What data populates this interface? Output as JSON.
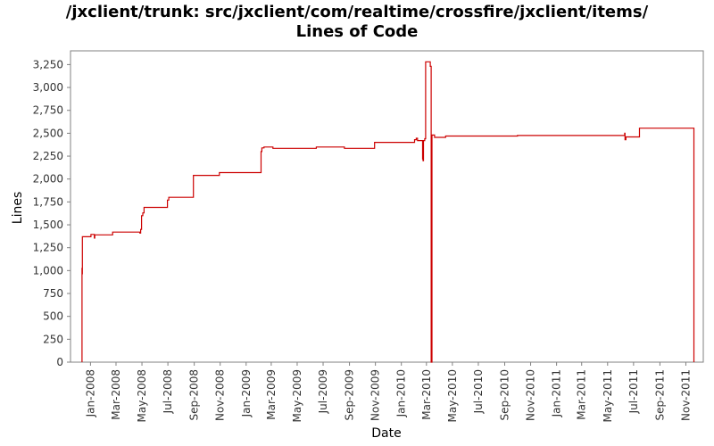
{
  "chart_data": {
    "type": "line",
    "title": "/jxclient/trunk: src/jxclient/com/realtime/crossfire/jxclient/items/",
    "subtitle": "Lines of Code",
    "xlabel": "Date",
    "ylabel": "Lines",
    "ylim": [
      0,
      3400
    ],
    "xlim": [
      "2007-11-15",
      "2011-12-12"
    ],
    "grid": false,
    "legend": "none",
    "series_color": "#cc0000",
    "y_ticks": [
      0,
      250,
      500,
      750,
      1000,
      1250,
      1500,
      1750,
      2000,
      2250,
      2500,
      2750,
      3000,
      3250
    ],
    "y_tick_labels": [
      "0",
      "250",
      "500",
      "750",
      "1,000",
      "1,250",
      "1,500",
      "1,750",
      "2,000",
      "2,250",
      "2,500",
      "2,750",
      "3,000",
      "3,250"
    ],
    "x_ticks": [
      "2008-01-01",
      "2008-03-01",
      "2008-05-01",
      "2008-07-01",
      "2008-09-01",
      "2008-11-01",
      "2009-01-01",
      "2009-03-01",
      "2009-05-01",
      "2009-07-01",
      "2009-09-01",
      "2009-11-01",
      "2010-01-01",
      "2010-03-01",
      "2010-05-01",
      "2010-07-01",
      "2010-09-01",
      "2010-11-01",
      "2011-01-01",
      "2011-03-01",
      "2011-05-01",
      "2011-07-01",
      "2011-09-01",
      "2011-11-01"
    ],
    "x_tick_labels": [
      "Jan-2008",
      "Mar-2008",
      "May-2008",
      "Jul-2008",
      "Sep-2008",
      "Nov-2008",
      "Jan-2009",
      "Mar-2009",
      "May-2009",
      "Jul-2009",
      "Sep-2009",
      "Nov-2009",
      "Jan-2010",
      "Mar-2010",
      "May-2010",
      "Jul-2010",
      "Sep-2010",
      "Nov-2010",
      "Jan-2011",
      "Mar-2011",
      "May-2011",
      "Jul-2011",
      "Sep-2011",
      "Nov-2011"
    ],
    "series": [
      {
        "points": [
          [
            "2007-12-12",
            0
          ],
          [
            "2007-12-12",
            970
          ],
          [
            "2007-12-12",
            1030
          ],
          [
            "2007-12-13",
            960
          ],
          [
            "2007-12-13",
            1370
          ],
          [
            "2008-01-02",
            1370
          ],
          [
            "2008-01-02",
            1395
          ],
          [
            "2008-01-10",
            1395
          ],
          [
            "2008-01-10",
            1355
          ],
          [
            "2008-01-11",
            1355
          ],
          [
            "2008-01-11",
            1390
          ],
          [
            "2008-02-22",
            1390
          ],
          [
            "2008-02-22",
            1420
          ],
          [
            "2008-04-26",
            1420
          ],
          [
            "2008-04-26",
            1410
          ],
          [
            "2008-04-28",
            1410
          ],
          [
            "2008-04-28",
            1450
          ],
          [
            "2008-04-30",
            1450
          ],
          [
            "2008-04-30",
            1600
          ],
          [
            "2008-05-03",
            1600
          ],
          [
            "2008-05-03",
            1630
          ],
          [
            "2008-05-06",
            1630
          ],
          [
            "2008-05-06",
            1690
          ],
          [
            "2008-06-30",
            1690
          ],
          [
            "2008-06-30",
            1770
          ],
          [
            "2008-07-03",
            1770
          ],
          [
            "2008-07-03",
            1800
          ],
          [
            "2008-08-30",
            1800
          ],
          [
            "2008-08-30",
            2040
          ],
          [
            "2008-10-30",
            2040
          ],
          [
            "2008-10-30",
            2070
          ],
          [
            "2009-02-05",
            2070
          ],
          [
            "2009-02-05",
            2300
          ],
          [
            "2009-02-07",
            2300
          ],
          [
            "2009-02-07",
            2340
          ],
          [
            "2009-02-12",
            2340
          ],
          [
            "2009-02-12",
            2350
          ],
          [
            "2009-03-05",
            2350
          ],
          [
            "2009-03-05",
            2335
          ],
          [
            "2009-06-15",
            2335
          ],
          [
            "2009-06-15",
            2350
          ],
          [
            "2009-08-20",
            2350
          ],
          [
            "2009-08-20",
            2335
          ],
          [
            "2009-10-30",
            2335
          ],
          [
            "2009-10-30",
            2400
          ],
          [
            "2010-02-01",
            2400
          ],
          [
            "2010-02-01",
            2430
          ],
          [
            "2010-02-05",
            2430
          ],
          [
            "2010-02-05",
            2445
          ],
          [
            "2010-02-08",
            2445
          ],
          [
            "2010-02-08",
            2420
          ],
          [
            "2010-02-20",
            2420
          ],
          [
            "2010-02-20",
            2220
          ],
          [
            "2010-02-21",
            2220
          ],
          [
            "2010-02-21",
            2200
          ],
          [
            "2010-02-22",
            2200
          ],
          [
            "2010-02-22",
            2420
          ],
          [
            "2010-02-25",
            2420
          ],
          [
            "2010-02-25",
            2440
          ],
          [
            "2010-02-27",
            2440
          ],
          [
            "2010-02-27",
            3280
          ],
          [
            "2010-03-10",
            3280
          ],
          [
            "2010-03-10",
            3230
          ],
          [
            "2010-03-12",
            3230
          ],
          [
            "2010-03-12",
            0
          ],
          [
            "2010-03-14",
            0
          ],
          [
            "2010-03-14",
            2480
          ],
          [
            "2010-03-20",
            2480
          ],
          [
            "2010-03-20",
            2455
          ],
          [
            "2010-04-15",
            2455
          ],
          [
            "2010-04-15",
            2470
          ],
          [
            "2010-10-01",
            2470
          ],
          [
            "2010-10-01",
            2475
          ],
          [
            "2011-06-10",
            2475
          ],
          [
            "2011-06-10",
            2500
          ],
          [
            "2011-06-11",
            2500
          ],
          [
            "2011-06-11",
            2430
          ],
          [
            "2011-06-13",
            2430
          ],
          [
            "2011-06-13",
            2460
          ],
          [
            "2011-07-15",
            2460
          ],
          [
            "2011-07-15",
            2555
          ],
          [
            "2011-11-20",
            2555
          ],
          [
            "2011-11-20",
            0
          ]
        ]
      }
    ]
  }
}
